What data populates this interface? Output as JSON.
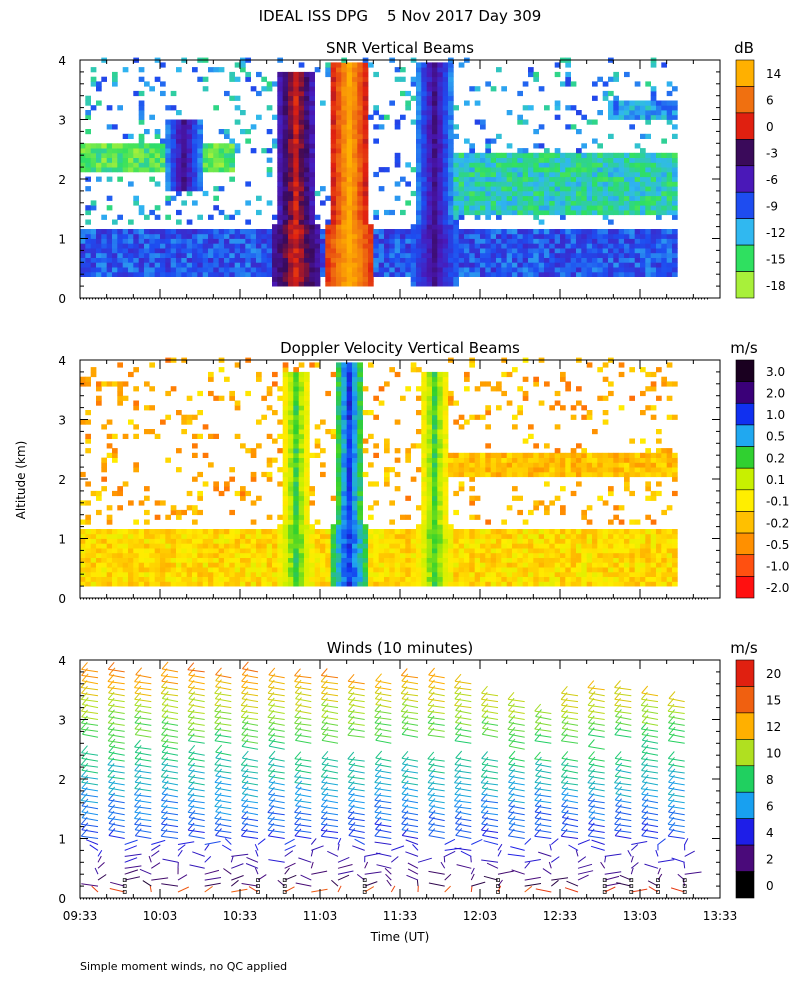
{
  "header": {
    "title": "IDEAL ISS DPG    5 Nov 2017 Day 309"
  },
  "footer": {
    "note": "Simple moment winds, no QC applied"
  },
  "axes": {
    "ylabel": "Altitude (km)",
    "xlabel": "Time (UT)",
    "yticks": [
      "0",
      "1",
      "2",
      "3",
      "4"
    ],
    "xticks": [
      "09:33",
      "10:03",
      "10:33",
      "11:03",
      "11:33",
      "12:03",
      "12:33",
      "13:03",
      "13:33"
    ]
  },
  "colors": {
    "snr_scale": [
      "#a8f03a",
      "#2fe060",
      "#30b8f0",
      "#1e4cf0",
      "#4a18b8",
      "#3a0a5a",
      "#e02010",
      "#f07010",
      "#ffb000"
    ],
    "vel_scale": [
      "#ff1010",
      "#ff5010",
      "#ff9000",
      "#ffc000",
      "#ffee00",
      "#c8f000",
      "#30d030",
      "#20a8f0",
      "#1030f0",
      "#3a0078",
      "#1a0020"
    ],
    "wind_scale": [
      "#000000",
      "#4a0a7a",
      "#1e1ee8",
      "#18a0f0",
      "#20d060",
      "#b0e020",
      "#ffb000",
      "#f06010",
      "#e02010"
    ]
  },
  "chart_data": [
    {
      "type": "heatmap",
      "title": "SNR Vertical Beams",
      "unit": "dB",
      "xlim": [
        "09:33",
        "13:33"
      ],
      "ylim": [
        0,
        4
      ],
      "colorbar_ticks": [
        "14",
        "6",
        "0",
        "-3",
        "-6",
        "-9",
        "-12",
        "-15",
        "-18"
      ],
      "data_coverage": {
        "start": "09:33",
        "end": "13:17",
        "altitude_km": [
          0.2,
          4.0
        ]
      },
      "bands": [
        {
          "alt_range": [
            0.3,
            1.1
          ],
          "time_range": [
            "09:33",
            "13:17"
          ],
          "level_db": -6
        },
        {
          "alt_range": [
            2.1,
            2.6
          ],
          "time_range": [
            "09:33",
            "10:30"
          ],
          "level_db": -15
        },
        {
          "alt_range": [
            1.4,
            2.4
          ],
          "time_range": [
            "11:45",
            "13:17"
          ],
          "level_db": -12
        },
        {
          "alt_range": [
            3.0,
            3.3
          ],
          "time_range": [
            "12:50",
            "13:17"
          ],
          "level_db": -9
        }
      ],
      "plumes": [
        {
          "time": "10:11",
          "alt_range": [
            1.8,
            3.0
          ],
          "level_db": 0
        },
        {
          "time": "10:53",
          "alt_range": [
            0.2,
            3.8
          ],
          "level_db": 6
        },
        {
          "time": "11:13",
          "alt_range": [
            0.2,
            3.9
          ],
          "level_db": 14
        },
        {
          "time": "11:45",
          "alt_range": [
            0.2,
            3.9
          ],
          "level_db": 0
        }
      ]
    },
    {
      "type": "heatmap",
      "title": "Doppler Velocity Vertical Beams",
      "unit": "m/s",
      "xlim": [
        "09:33",
        "13:33"
      ],
      "ylim": [
        0,
        4
      ],
      "colorbar_ticks": [
        "3.0",
        "2.0",
        "1.0",
        "0.5",
        "0.2",
        "0.1",
        "-0.1",
        "-0.2",
        "-0.5",
        "-1.0",
        "-2.0"
      ],
      "data_coverage": {
        "start": "09:33",
        "end": "13:17",
        "altitude_km": [
          0.2,
          4.0
        ]
      },
      "bands": [
        {
          "alt_range": [
            0.2,
            1.1
          ],
          "time_range": [
            "09:33",
            "13:17"
          ],
          "value_ms": -0.2
        },
        {
          "alt_range": [
            2.0,
            2.4
          ],
          "time_range": [
            "11:50",
            "13:17"
          ],
          "value_ms": -0.5
        }
      ],
      "plumes": [
        {
          "time": "10:53",
          "alt_range": [
            0.2,
            3.8
          ],
          "value_ms": 1.0
        },
        {
          "time": "11:13",
          "alt_range": [
            0.2,
            3.9
          ],
          "value_ms": 2.0
        },
        {
          "time": "11:45",
          "alt_range": [
            0.2,
            3.8
          ],
          "value_ms": 1.0
        }
      ]
    },
    {
      "type": "scatter",
      "title": "Winds (10 minutes)",
      "unit": "m/s",
      "xlim": [
        "09:33",
        "13:33"
      ],
      "ylim": [
        0,
        4
      ],
      "colorbar_ticks": [
        "20",
        "15",
        "12",
        "10",
        "8",
        "6",
        "4",
        "2",
        "0"
      ],
      "marker": "wind barbs",
      "profile_times": [
        "09:33",
        "09:43",
        "09:53",
        "10:03",
        "10:13",
        "10:23",
        "10:33",
        "10:43",
        "10:53",
        "11:03",
        "11:13",
        "11:23",
        "11:33",
        "11:43",
        "11:53",
        "12:03",
        "12:13",
        "12:23",
        "12:33",
        "12:43",
        "12:53",
        "13:03",
        "13:13"
      ],
      "profile_tops_km": [
        3.9,
        3.9,
        3.8,
        3.9,
        3.9,
        3.8,
        3.9,
        3.8,
        3.8,
        3.8,
        3.7,
        3.7,
        3.8,
        3.8,
        3.7,
        3.5,
        3.4,
        3.2,
        3.5,
        3.6,
        3.6,
        3.5,
        3.4
      ],
      "speed_profile_ms": [
        {
          "altitude_km": 0.2,
          "speed": 2
        },
        {
          "altitude_km": 1.0,
          "speed": 6
        },
        {
          "altitude_km": 1.6,
          "speed": 8
        },
        {
          "altitude_km": 2.2,
          "speed": 10
        },
        {
          "altitude_km": 2.8,
          "speed": 12
        },
        {
          "altitude_km": 3.4,
          "speed": 15
        },
        {
          "altitude_km": 4.0,
          "speed": 20
        }
      ]
    }
  ]
}
